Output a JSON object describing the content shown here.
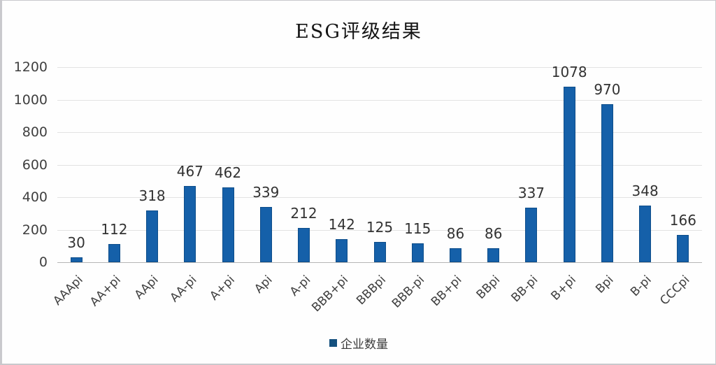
{
  "chart_data": {
    "type": "bar",
    "title": "ESG评级结果",
    "categories": [
      "AAApi",
      "AA+pi",
      "AApi",
      "AA-pi",
      "A+pi",
      "Api",
      "A-pi",
      "BBB+pi",
      "BBBpi",
      "BBB-pi",
      "BB+pi",
      "BBpi",
      "BB-pi",
      "B+pi",
      "Bpi",
      "B-pi",
      "CCCpi"
    ],
    "values": [
      30,
      112,
      318,
      467,
      462,
      339,
      212,
      142,
      125,
      115,
      86,
      86,
      337,
      1078,
      970,
      348,
      166
    ],
    "series_name": "企业数量",
    "xlabel": "",
    "ylabel": "",
    "ylim": [
      0,
      1200
    ],
    "yticks": [
      0,
      200,
      400,
      600,
      800,
      1000,
      1200
    ],
    "grid": true,
    "legend_position": "bottom",
    "colors": {
      "bar": "#1560a9",
      "bar_edge": "#0d4d8a",
      "grid": "#e2e2e2",
      "axis_line": "#b5b5b5",
      "text": "#3f3f3f",
      "title": "#141414"
    }
  }
}
